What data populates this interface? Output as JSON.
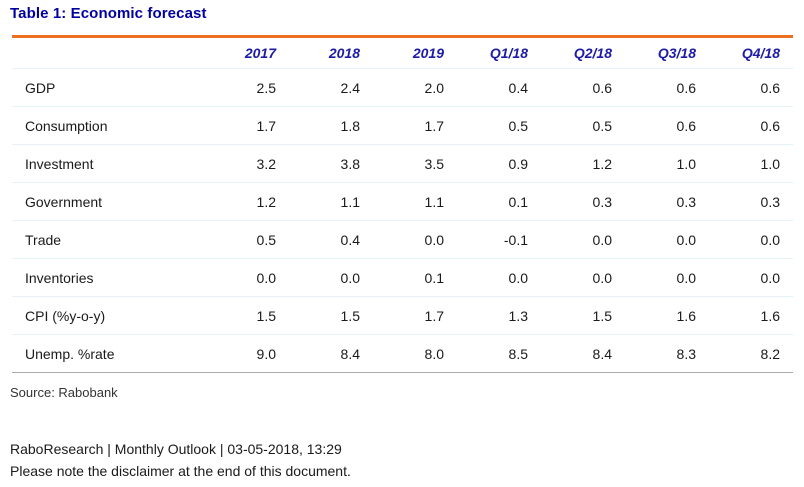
{
  "title": "Table 1: Economic forecast",
  "table": {
    "columns": [
      "2017",
      "2018",
      "2019",
      "Q1/18",
      "Q2/18",
      "Q3/18",
      "Q4/18"
    ],
    "rows": [
      {
        "label": "GDP",
        "values": [
          "2.5",
          "2.4",
          "2.0",
          "0.4",
          "0.6",
          "0.6",
          "0.6"
        ]
      },
      {
        "label": "Consumption",
        "values": [
          "1.7",
          "1.8",
          "1.7",
          "0.5",
          "0.5",
          "0.6",
          "0.6"
        ]
      },
      {
        "label": "Investment",
        "values": [
          "3.2",
          "3.8",
          "3.5",
          "0.9",
          "1.2",
          "1.0",
          "1.0"
        ]
      },
      {
        "label": "Government",
        "values": [
          "1.2",
          "1.1",
          "1.1",
          "0.1",
          "0.3",
          "0.3",
          "0.3"
        ]
      },
      {
        "label": "Trade",
        "values": [
          "0.5",
          "0.4",
          "0.0",
          "-0.1",
          "0.0",
          "0.0",
          "0.0"
        ]
      },
      {
        "label": "Inventories",
        "values": [
          "0.0",
          "0.0",
          "0.1",
          "0.0",
          "0.0",
          "0.0",
          "0.0"
        ]
      },
      {
        "label": "CPI (%y-o-y)",
        "values": [
          "1.5",
          "1.5",
          "1.7",
          "1.3",
          "1.5",
          "1.6",
          "1.6"
        ]
      },
      {
        "label": "Unemp. %rate",
        "values": [
          "9.0",
          "8.4",
          "8.0",
          "8.5",
          "8.4",
          "8.3",
          "8.2"
        ]
      }
    ]
  },
  "source": "Source: Rabobank",
  "footer": {
    "line1": "RaboResearch | Monthly Outlook | 03-05-2018, 13:29",
    "line2": "Please note the disclaimer at the end of this document."
  },
  "colors": {
    "title_navy": "#0000a0",
    "header_blue": "#1d1ba6",
    "accent_orange": "#ed7021",
    "row_separator": "#e4f1f8",
    "table_bottom_border": "#ababab",
    "body_text": "#1a1a1a"
  }
}
